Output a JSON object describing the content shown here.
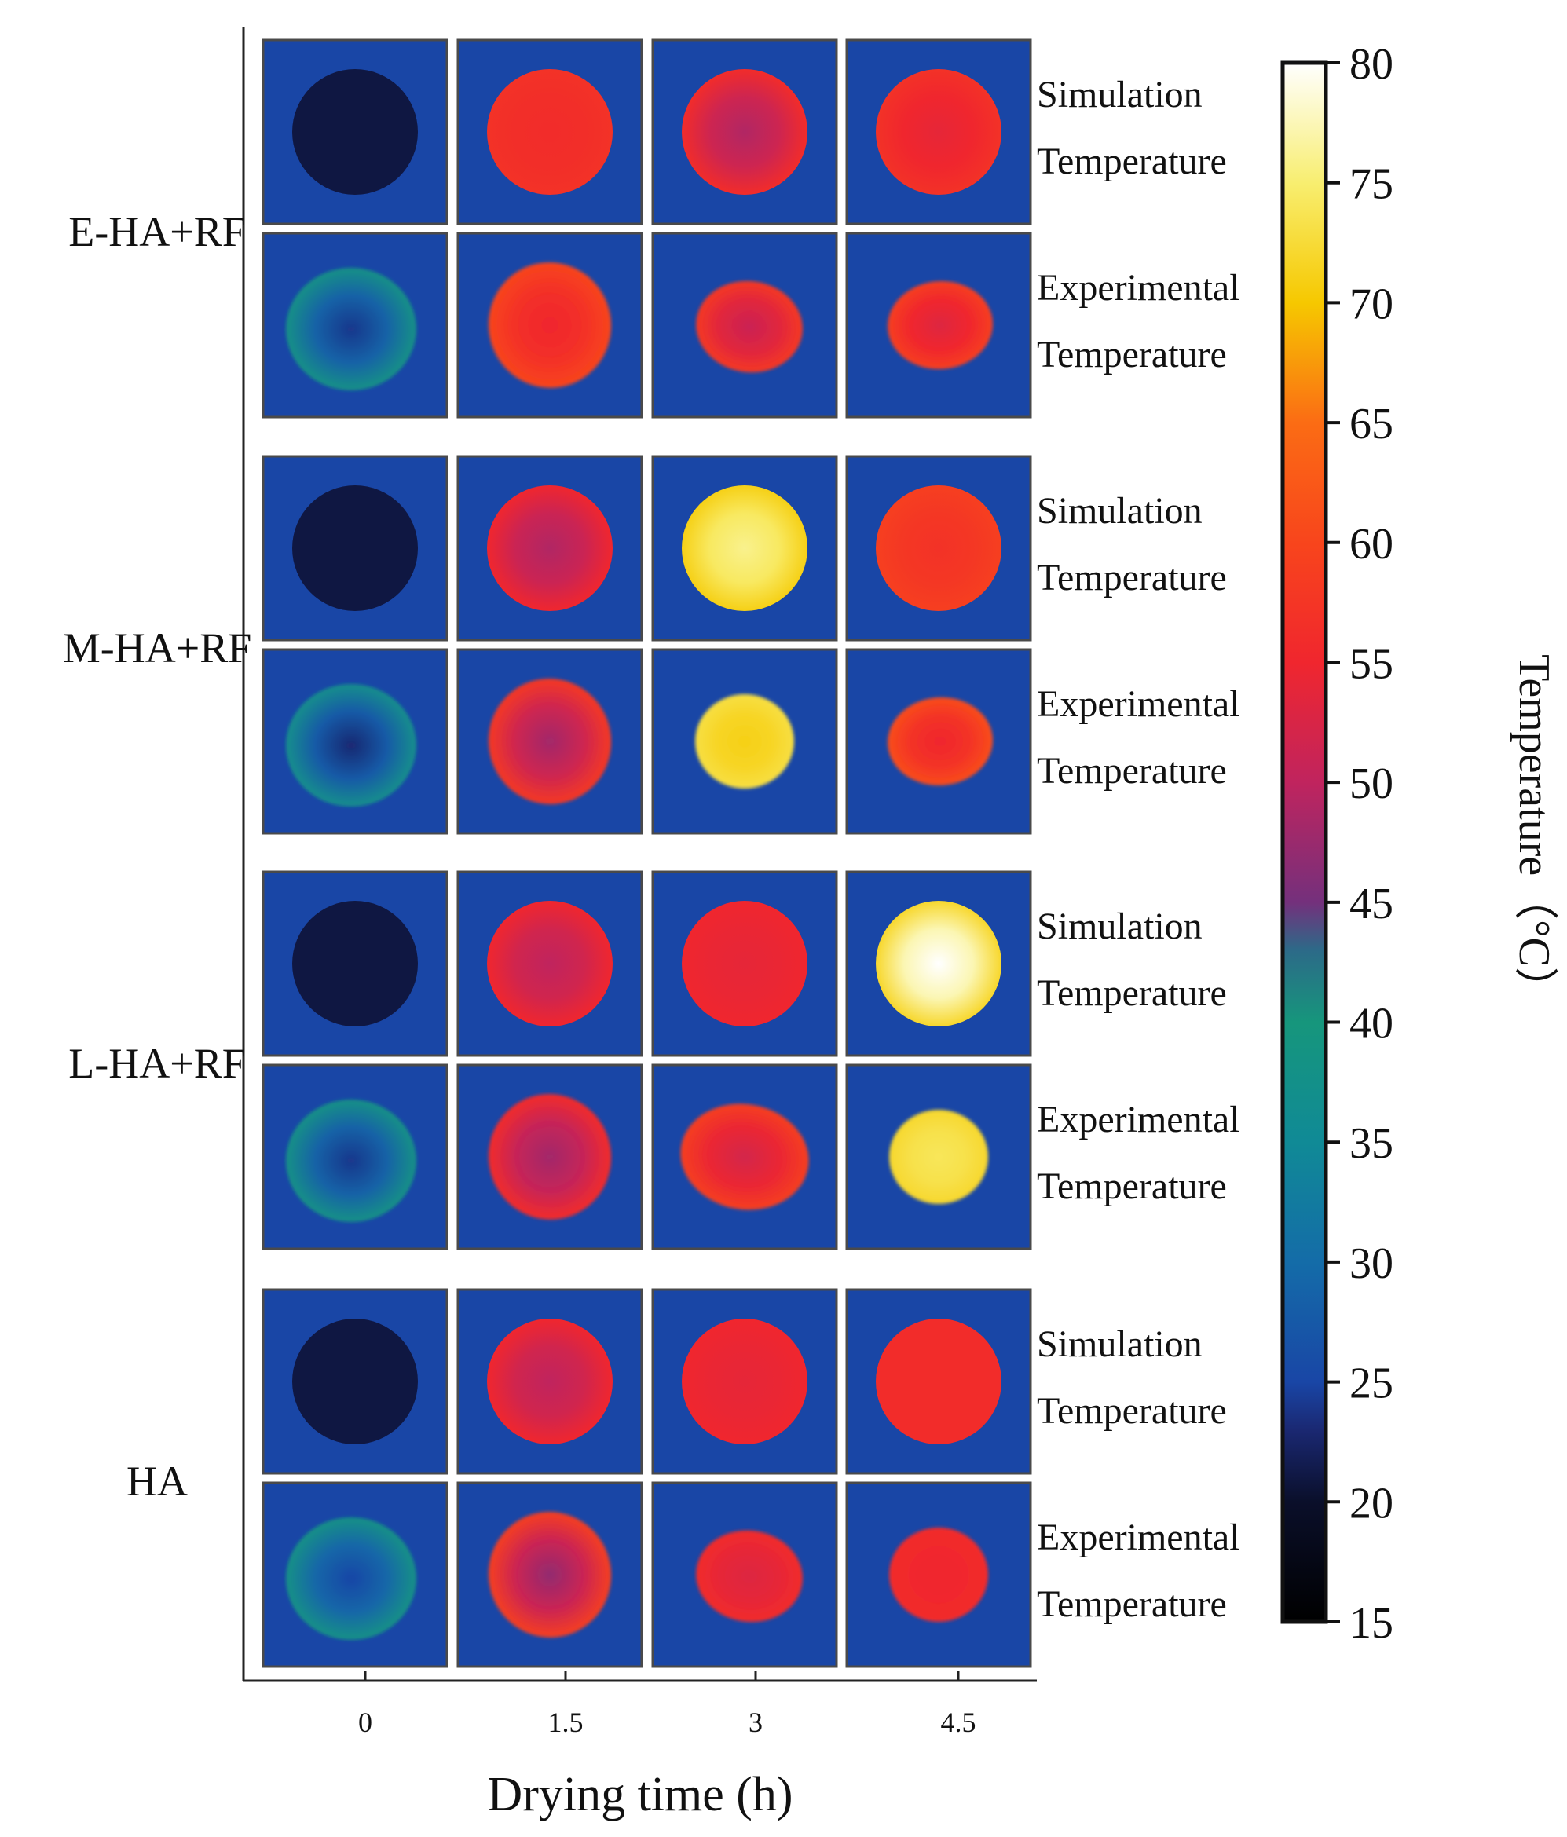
{
  "chart_data": {
    "type": "heatmap",
    "xlabel": "Drying time (h)",
    "x": [
      "0",
      "1.5",
      "3",
      "4.5"
    ],
    "groups": [
      {
        "label": "E-HA+RF",
        "rows": [
          {
            "label_line1": "Simulation",
            "label_line2": "Temperature",
            "kind": "sim",
            "center": [
              21,
              56,
              49,
              54
            ],
            "edge": [
              21,
              57,
              56,
              57
            ],
            "shape": [
              0,
              0,
              0,
              0
            ]
          },
          {
            "label_line1": "Experimental",
            "label_line2": "Temperature",
            "kind": "exp",
            "center": [
              24,
              55,
              51,
              53
            ],
            "edge": [
              38,
              60,
              58,
              59
            ],
            "shape": [
              1,
              2,
              3,
              4
            ]
          }
        ]
      },
      {
        "label": "M-HA+RF",
        "rows": [
          {
            "label_line1": "Simulation",
            "label_line2": "Temperature",
            "kind": "sim",
            "center": [
              21,
              49,
              76,
              57
            ],
            "edge": [
              21,
              55,
              71,
              59
            ],
            "shape": [
              0,
              0,
              0,
              0
            ]
          },
          {
            "label_line1": "Experimental",
            "label_line2": "Temperature",
            "kind": "exp",
            "center": [
              23,
              48,
              71,
              55
            ],
            "edge": [
              37,
              58,
              73,
              61
            ],
            "shape": [
              1,
              2,
              5,
              4
            ]
          }
        ]
      },
      {
        "label": "L-HA+RF",
        "rows": [
          {
            "label_line1": "Simulation",
            "label_line2": "Temperature",
            "kind": "sim",
            "center": [
              21,
              50,
              54,
              80
            ],
            "edge": [
              21,
              55,
              55,
              72
            ],
            "shape": [
              0,
              0,
              0,
              0
            ]
          },
          {
            "label_line1": "Experimental",
            "label_line2": "Temperature",
            "kind": "exp",
            "center": [
              24,
              48,
              52,
              74
            ],
            "edge": [
              38,
              56,
              59,
              72
            ],
            "shape": [
              1,
              2,
              6,
              5
            ]
          }
        ]
      },
      {
        "label": "HA",
        "rows": [
          {
            "label_line1": "Simulation",
            "label_line2": "Temperature",
            "kind": "sim",
            "center": [
              21,
              50,
              54,
              56
            ],
            "edge": [
              21,
              55,
              55,
              56
            ],
            "shape": [
              0,
              0,
              0,
              0
            ]
          },
          {
            "label_line1": "Experimental",
            "label_line2": "Temperature",
            "kind": "exp",
            "center": [
              25,
              47,
              53,
              55
            ],
            "edge": [
              38,
              59,
              56,
              56
            ],
            "shape": [
              1,
              2,
              3,
              5
            ]
          }
        ]
      }
    ],
    "background_temperature": 25,
    "colorbar": {
      "label": "Temperature（°C）",
      "min": 15,
      "max": 80,
      "ticks": [
        15,
        20,
        25,
        30,
        35,
        40,
        45,
        50,
        55,
        60,
        65,
        70,
        75,
        80
      ],
      "stops": [
        [
          15,
          "#000000"
        ],
        [
          20,
          "#0a0f2a"
        ],
        [
          23,
          "#1a2872"
        ],
        [
          25,
          "#1946a6"
        ],
        [
          30,
          "#146ca8"
        ],
        [
          35,
          "#108a96"
        ],
        [
          40,
          "#16967c"
        ],
        [
          43,
          "#2c6a88"
        ],
        [
          45,
          "#74307c"
        ],
        [
          50,
          "#c0245e"
        ],
        [
          55,
          "#f0262e"
        ],
        [
          60,
          "#f8451c"
        ],
        [
          65,
          "#fb6c14"
        ],
        [
          70,
          "#f6c800"
        ],
        [
          75,
          "#f8ee70"
        ],
        [
          80,
          "#ffffff"
        ]
      ]
    }
  }
}
